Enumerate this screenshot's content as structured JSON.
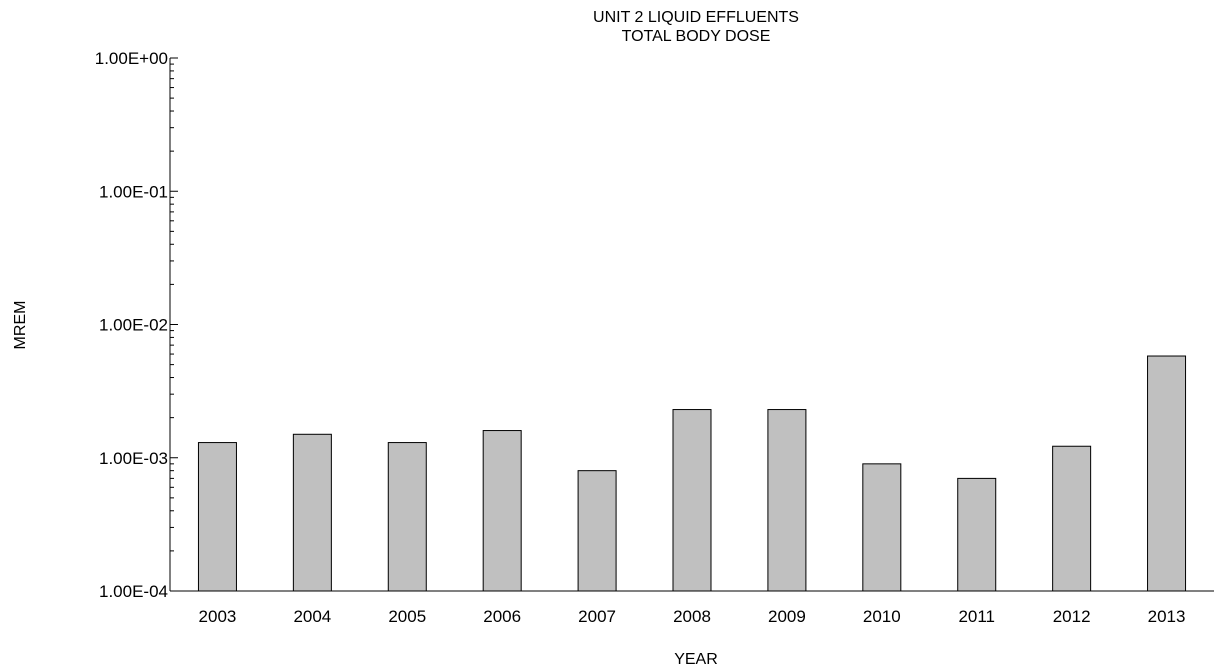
{
  "chart_data": {
    "type": "bar",
    "title": "UNIT 2 LIQUID EFFLUENTS",
    "subtitle": "TOTAL BODY DOSE",
    "xlabel": "YEAR",
    "ylabel": "MREM",
    "yscale": "log",
    "ylim": [
      0.0001,
      1
    ],
    "yticks": [
      {
        "value": 1,
        "label": "1.00E+00"
      },
      {
        "value": 0.1,
        "label": "1.00E-01"
      },
      {
        "value": 0.01,
        "label": "1.00E-02"
      },
      {
        "value": 0.001,
        "label": "1.00E-03"
      },
      {
        "value": 0.0001,
        "label": "1.00E-04"
      }
    ],
    "categories": [
      "2003",
      "2004",
      "2005",
      "2006",
      "2007",
      "2008",
      "2009",
      "2010",
      "2011",
      "2012",
      "2013"
    ],
    "values": [
      0.0013,
      0.0015,
      0.0013,
      0.0016,
      0.0008,
      0.0023,
      0.0023,
      0.0009,
      0.0007,
      0.00122,
      0.0058
    ],
    "bar_color": "#c0c0c0",
    "bar_edge_color": "#000000",
    "grid": false,
    "legend": "none"
  }
}
